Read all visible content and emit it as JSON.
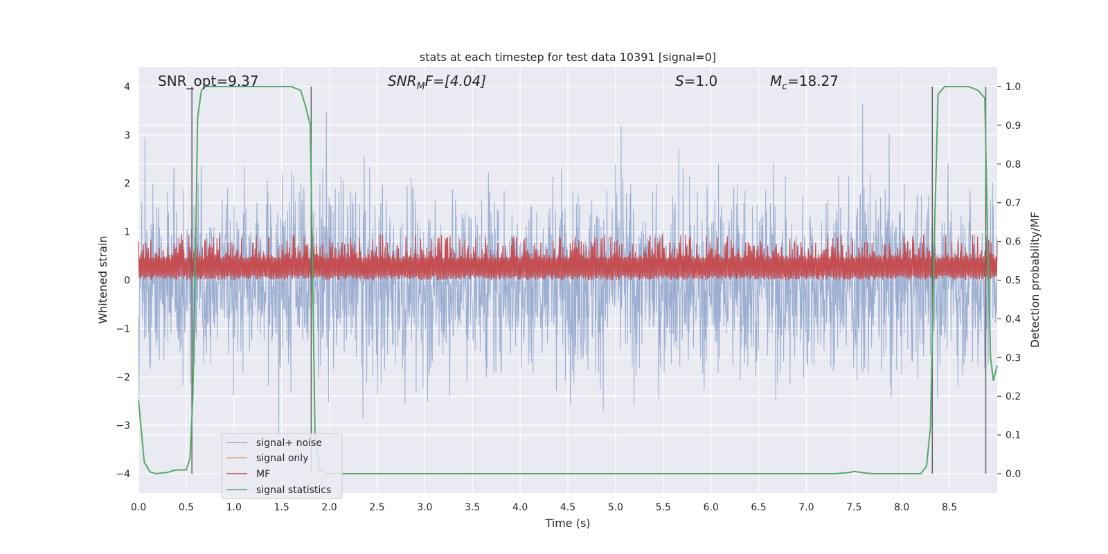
{
  "chart_data": {
    "type": "line",
    "title": "stats at each timestep for test data 10391 [signal=0]",
    "xlabel": "Time (s)",
    "ylabel": "Whitened strain",
    "y2label": "Detection probability/MF",
    "xlim": [
      0.0,
      9.0
    ],
    "ylim": [
      -4.4,
      4.4
    ],
    "y2lim": [
      -0.05,
      1.05
    ],
    "xticks": [
      0.0,
      0.5,
      1.0,
      1.5,
      2.0,
      2.5,
      3.0,
      3.5,
      4.0,
      4.5,
      5.0,
      5.5,
      6.0,
      6.5,
      7.0,
      7.5,
      8.0,
      8.5
    ],
    "xtick_labels": [
      "0.0",
      "0.5",
      "1.0",
      "1.5",
      "2.0",
      "2.5",
      "3.0",
      "3.5",
      "4.0",
      "4.5",
      "5.0",
      "5.5",
      "6.0",
      "6.5",
      "7.0",
      "7.5",
      "8.0",
      "8.5"
    ],
    "yticks": [
      -4,
      -3,
      -2,
      -1,
      0,
      1,
      2,
      3,
      4
    ],
    "ytick_labels": [
      "−4",
      "−3",
      "−2",
      "−1",
      "0",
      "1",
      "2",
      "3",
      "4"
    ],
    "y2ticks": [
      0.0,
      0.1,
      0.2,
      0.3,
      0.4,
      0.5,
      0.6,
      0.7,
      0.8,
      0.9,
      1.0
    ],
    "y2tick_labels": [
      "0.0",
      "0.1",
      "0.2",
      "0.3",
      "0.4",
      "0.5",
      "0.6",
      "0.7",
      "0.8",
      "0.9",
      "1.0"
    ],
    "grid": true,
    "legend_position": "bottom-left",
    "annotations": {
      "snr_opt": "SNR_opt=9.37",
      "snr_mf_main": "SNR",
      "snr_mf_sub": "M",
      "snr_mf_rest": "F=[4.04]",
      "s_main": "S",
      "s_rest": "=1.0",
      "mc_main": "M",
      "mc_sub": "c",
      "mc_rest": "=18.27"
    },
    "noise_envelope": {
      "name": "signal+ noise",
      "color": "#4c72b0",
      "typical_peak": [
        2.0,
        2.9
      ],
      "max_peak": 4.0,
      "min_peak": -4.0
    },
    "mf_band": {
      "name": "MF",
      "color": "#c44e52",
      "lower": [
        0.0,
        0.1
      ],
      "upper": [
        0.45,
        0.95
      ]
    },
    "signal_only": {
      "name": "signal only",
      "color": "#dd8452"
    },
    "signal_statistics": {
      "name": "signal statistics",
      "color": "#55a868",
      "x": [
        0.0,
        0.06,
        0.12,
        0.18,
        0.3,
        0.36,
        0.42,
        0.5,
        0.54,
        0.57,
        0.6,
        0.62,
        0.66,
        0.7,
        0.8,
        1.0,
        1.2,
        1.4,
        1.6,
        1.7,
        1.75,
        1.8,
        1.82,
        1.85,
        1.9,
        2.0,
        2.5,
        3.0,
        4.0,
        5.0,
        6.0,
        7.0,
        7.3,
        7.45,
        7.5,
        7.6,
        7.7,
        8.0,
        8.2,
        8.26,
        8.3,
        8.34,
        8.38,
        8.45,
        8.5,
        8.7,
        8.8,
        8.87,
        8.9,
        8.93,
        8.96,
        9.0
      ],
      "values": [
        0.19,
        0.03,
        0.005,
        0.0,
        0.003,
        0.008,
        0.01,
        0.01,
        0.04,
        0.2,
        0.6,
        0.92,
        0.99,
        1.0,
        1.0,
        1.0,
        1.0,
        1.0,
        1.0,
        0.99,
        0.95,
        0.9,
        0.6,
        0.1,
        0.01,
        0.0,
        0.0,
        0.0,
        0.0,
        0.0,
        0.0,
        0.0,
        0.0,
        0.003,
        0.006,
        0.002,
        0.0,
        0.0,
        0.0,
        0.02,
        0.12,
        0.6,
        0.98,
        1.0,
        1.0,
        1.0,
        0.99,
        0.97,
        0.6,
        0.3,
        0.24,
        0.28
      ]
    },
    "vertical_markers": [
      0.56,
      1.81,
      8.32,
      8.88
    ],
    "vertical_marker_color": "#606060"
  }
}
